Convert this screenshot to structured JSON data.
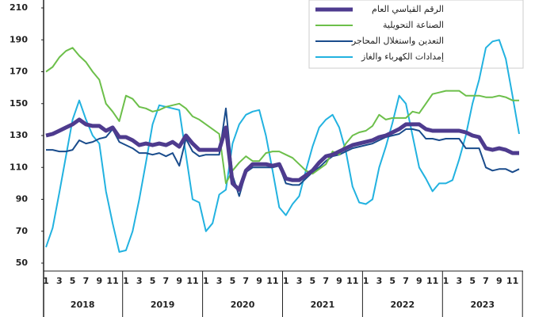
{
  "chart_data": {
    "type": "line",
    "categories": [
      "1",
      null,
      "3",
      null,
      "5",
      null,
      "7",
      null,
      "9",
      null,
      "11",
      null,
      "1",
      null,
      "3",
      null,
      "5",
      null,
      "7",
      null,
      "9",
      null,
      "11",
      null,
      "1",
      null,
      "3",
      null,
      "5",
      null,
      "7",
      null,
      "9",
      null,
      "11",
      null,
      "1",
      null,
      "3",
      null,
      "5",
      null,
      "7",
      null,
      "9",
      null,
      "11",
      null,
      "1",
      null,
      "3",
      null,
      "5",
      null,
      "7",
      null,
      "9",
      null,
      "11",
      null,
      "1",
      null,
      "3",
      null,
      "5",
      null,
      "7",
      null,
      "9",
      null,
      "11",
      null
    ],
    "years": [
      "2018",
      "2019",
      "2020",
      "2021",
      "2022",
      "2023"
    ],
    "ylim": [
      50,
      210
    ],
    "yticks": [
      50,
      70,
      90,
      110,
      130,
      150,
      170,
      190,
      210
    ],
    "series": [
      {
        "name": "الرقم القياسي العام",
        "color": "#4e3b8e",
        "width": 5,
        "values": [
          130,
          131,
          133,
          135,
          137,
          140,
          137,
          136,
          136,
          133,
          135,
          129,
          129,
          127,
          124,
          125,
          124,
          125,
          124,
          126,
          123,
          130,
          125,
          121,
          121,
          121,
          121,
          135,
          100,
          96,
          108,
          112,
          112,
          112,
          111,
          112,
          103,
          102,
          102,
          105,
          108,
          113,
          117,
          118,
          120,
          122,
          124,
          125,
          126,
          127,
          129,
          130,
          132,
          134,
          137,
          137,
          137,
          134,
          133,
          133,
          133,
          133,
          133,
          132,
          130,
          129,
          122,
          121,
          122,
          121,
          119,
          119
        ]
      },
      {
        "name": "الصناعة التحويلية",
        "color": "#6cbf4a",
        "width": 2,
        "values": [
          170,
          173,
          179,
          183,
          185,
          180,
          176,
          170,
          165,
          150,
          145,
          139,
          155,
          153,
          148,
          147,
          145,
          146,
          148,
          149,
          150,
          147,
          142,
          140,
          137,
          134,
          131,
          100,
          108,
          113,
          117,
          114,
          114,
          119,
          120,
          120,
          118,
          116,
          112,
          108,
          106,
          109,
          112,
          120,
          118,
          125,
          130,
          132,
          133,
          136,
          143,
          140,
          141,
          141,
          141,
          145,
          144,
          150,
          156,
          157,
          158,
          158,
          158,
          155,
          155,
          155,
          154,
          154,
          155,
          154,
          152,
          152
        ]
      },
      {
        "name": "التعدين واستغلال المحاجر",
        "color": "#1a4c8c",
        "width": 2,
        "values": [
          121,
          121,
          120,
          120,
          121,
          127,
          125,
          126,
          128,
          129,
          134,
          126,
          124,
          122,
          119,
          119,
          118,
          119,
          117,
          119,
          111,
          128,
          120,
          117,
          118,
          118,
          118,
          147,
          105,
          92,
          107,
          110,
          110,
          110,
          110,
          111,
          100,
          99,
          99,
          103,
          107,
          110,
          114,
          117,
          118,
          120,
          122,
          123,
          124,
          125,
          127,
          129,
          130,
          131,
          134,
          134,
          133,
          128,
          128,
          127,
          128,
          128,
          128,
          122,
          122,
          122,
          110,
          108,
          109,
          109,
          107,
          109
        ]
      },
      {
        "name": "إمدادات الكهرباء والغاز",
        "color": "#22b2e0",
        "width": 2,
        "values": [
          60,
          72,
          94,
          117,
          140,
          152,
          140,
          130,
          125,
          95,
          75,
          57,
          58,
          70,
          90,
          113,
          137,
          149,
          148,
          147,
          146,
          118,
          90,
          88,
          70,
          75,
          93,
          96,
          125,
          137,
          143,
          145,
          146,
          130,
          108,
          85,
          80,
          87,
          92,
          108,
          123,
          135,
          140,
          143,
          135,
          120,
          98,
          88,
          87,
          90,
          110,
          123,
          138,
          155,
          150,
          130,
          110,
          103,
          95,
          100,
          100,
          102,
          115,
          130,
          150,
          165,
          185,
          189,
          190,
          178,
          155,
          131
        ]
      }
    ]
  }
}
